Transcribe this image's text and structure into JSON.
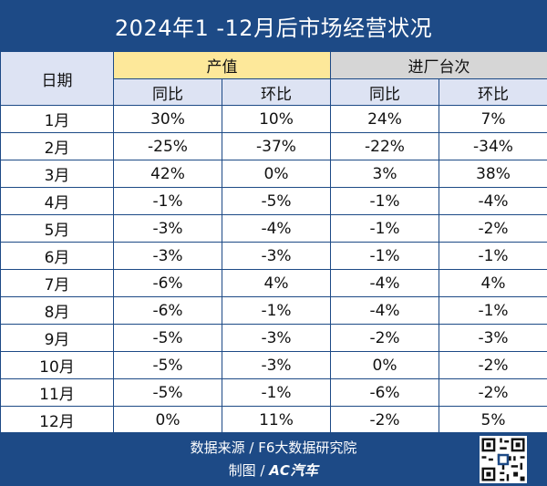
{
  "title": "2024年1 -12月后市场经营状况",
  "headers": {
    "date": "日期",
    "group1": "产值",
    "group2": "进厂台次",
    "yoy": "同比",
    "mom": "环比"
  },
  "chart_data": {
    "type": "table",
    "title": "2024年1 -12月后市场经营状况",
    "columns": [
      "日期",
      "产值 同比",
      "产值 环比",
      "进厂台次 同比",
      "进厂台次 环比"
    ],
    "rows": [
      [
        "1月",
        "30%",
        "10%",
        "24%",
        "7%"
      ],
      [
        "2月",
        "-25%",
        "-37%",
        "-22%",
        "-34%"
      ],
      [
        "3月",
        "42%",
        "0%",
        "3%",
        "38%"
      ],
      [
        "4月",
        "-1%",
        "-5%",
        "-1%",
        "-4%"
      ],
      [
        "5月",
        "-3%",
        "-4%",
        "-1%",
        "-2%"
      ],
      [
        "6月",
        "-3%",
        "-3%",
        "-1%",
        "-1%"
      ],
      [
        "7月",
        "-6%",
        "4%",
        "-4%",
        "4%"
      ],
      [
        "8月",
        "-6%",
        "-1%",
        "-4%",
        "-1%"
      ],
      [
        "9月",
        "-5%",
        "-3%",
        "-2%",
        "-3%"
      ],
      [
        "10月",
        "-5%",
        "-3%",
        "0%",
        "-2%"
      ],
      [
        "11月",
        "-5%",
        "-1%",
        "-6%",
        "-2%"
      ],
      [
        "12月",
        "0%",
        "11%",
        "-2%",
        "5%"
      ]
    ]
  },
  "footer": {
    "source": "数据来源 / F6大数据研究院",
    "made_by": "制图 / ",
    "brand": "AC汽车"
  },
  "colors": {
    "frame": "#1d4a86",
    "negative": "#c0392b",
    "group1_bg": "#fde89a",
    "group2_bg": "#d6d6d6",
    "subhead_bg": "#dde3f3"
  },
  "icons": {
    "qr": "qr-code-icon"
  }
}
